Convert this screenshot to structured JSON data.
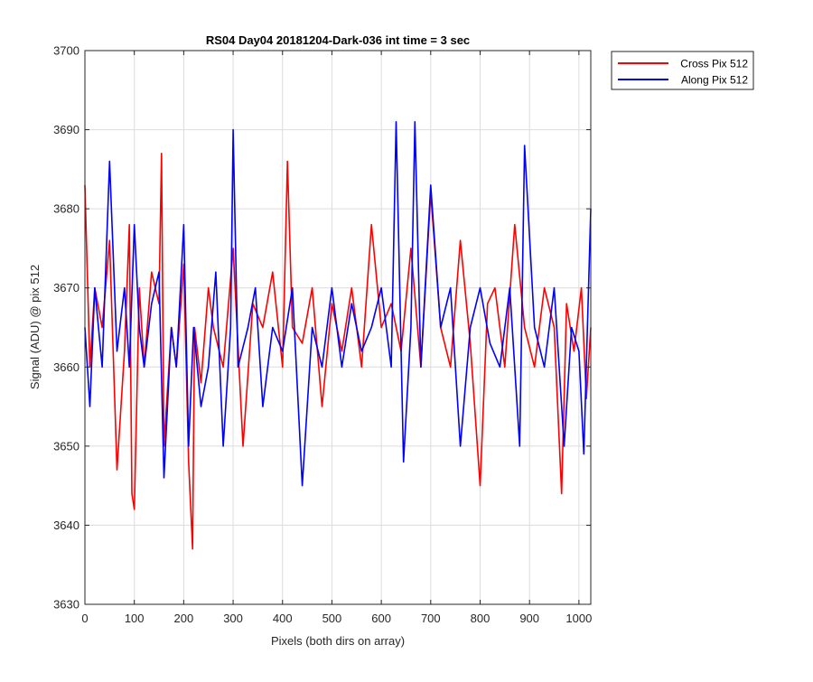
{
  "chart_data": {
    "type": "line",
    "title": "RS04 Day04 20181204-Dark-036 int time = 3 sec",
    "xlabel": "Pixels (both dirs on array)",
    "ylabel": "Signal (ADU) @ pix 512",
    "xlim": [
      0,
      1024
    ],
    "ylim": [
      3630,
      3700
    ],
    "xticks": [
      0,
      100,
      200,
      300,
      400,
      500,
      600,
      700,
      800,
      900,
      1000
    ],
    "yticks": [
      3630,
      3640,
      3650,
      3660,
      3670,
      3680,
      3690,
      3700
    ],
    "grid": true,
    "legend": "outside-top-right",
    "series": [
      {
        "name": "Cross Pix 512",
        "color": "#ff0000",
        "x": [
          0,
          10,
          20,
          35,
          50,
          65,
          80,
          90,
          95,
          100,
          110,
          120,
          135,
          150,
          155,
          160,
          175,
          185,
          200,
          210,
          218,
          222,
          235,
          250,
          260,
          280,
          300,
          320,
          340,
          360,
          380,
          400,
          410,
          420,
          440,
          460,
          480,
          500,
          520,
          540,
          560,
          580,
          600,
          620,
          640,
          660,
          680,
          700,
          720,
          740,
          760,
          780,
          800,
          815,
          830,
          850,
          870,
          890,
          910,
          930,
          950,
          965,
          975,
          990,
          1005,
          1015,
          1024
        ],
        "values": [
          3683,
          3660,
          3670,
          3665,
          3676,
          3647,
          3662,
          3678,
          3644,
          3642,
          3670,
          3660,
          3672,
          3668,
          3687,
          3650,
          3665,
          3660,
          3673,
          3648,
          3637,
          3665,
          3658,
          3670,
          3665,
          3660,
          3675,
          3650,
          3668,
          3665,
          3672,
          3660,
          3686,
          3665,
          3663,
          3670,
          3655,
          3668,
          3662,
          3670,
          3660,
          3678,
          3665,
          3668,
          3662,
          3675,
          3660,
          3682,
          3665,
          3660,
          3676,
          3663,
          3645,
          3668,
          3670,
          3660,
          3678,
          3665,
          3660,
          3670,
          3665,
          3644,
          3668,
          3662,
          3670,
          3656,
          3665
        ]
      },
      {
        "name": "Along Pix 512",
        "color": "#0000ff",
        "x": [
          0,
          10,
          20,
          35,
          50,
          65,
          80,
          90,
          100,
          110,
          120,
          135,
          150,
          160,
          175,
          185,
          200,
          210,
          220,
          235,
          250,
          265,
          280,
          295,
          300,
          310,
          330,
          345,
          360,
          380,
          400,
          420,
          440,
          460,
          480,
          500,
          520,
          540,
          560,
          580,
          600,
          620,
          630,
          645,
          660,
          668,
          680,
          700,
          720,
          740,
          760,
          780,
          800,
          820,
          840,
          860,
          880,
          890,
          910,
          930,
          950,
          970,
          985,
          1000,
          1010,
          1024
        ],
        "values": [
          3665,
          3655,
          3670,
          3660,
          3686,
          3662,
          3670,
          3660,
          3678,
          3665,
          3660,
          3668,
          3672,
          3646,
          3665,
          3660,
          3678,
          3650,
          3665,
          3655,
          3660,
          3672,
          3650,
          3665,
          3690,
          3660,
          3665,
          3670,
          3655,
          3665,
          3662,
          3670,
          3645,
          3665,
          3660,
          3670,
          3660,
          3668,
          3662,
          3665,
          3670,
          3660,
          3691,
          3648,
          3665,
          3691,
          3660,
          3683,
          3665,
          3670,
          3650,
          3665,
          3670,
          3663,
          3660,
          3670,
          3650,
          3688,
          3665,
          3660,
          3670,
          3650,
          3665,
          3662,
          3649,
          3680
        ]
      }
    ]
  }
}
